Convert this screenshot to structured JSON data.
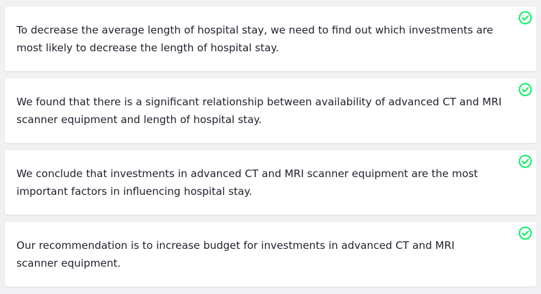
{
  "statements": [
    {
      "text": "To decrease the average length of hospital stay, we need to find out which investments are most likely to decrease the length of hospital stay.",
      "status": "correct"
    },
    {
      "text": "We found that there is a significant relationship between availability of advanced CT and MRI scanner equipment and length of hospital stay.",
      "status": "correct"
    },
    {
      "text": "We conclude that investments in advanced CT and MRI scanner equipment are the most important factors in influencing hospital stay.",
      "status": "correct"
    },
    {
      "text": "Our recommendation is to increase budget for investments in advanced CT and MRI scanner equipment.",
      "status": "correct"
    }
  ],
  "icons": {
    "status": "check-circle-icon"
  },
  "colors": {
    "background": "#f1f1f3",
    "card": "#ffffff",
    "text": "#1f1f2e",
    "success": "#03ef62"
  }
}
